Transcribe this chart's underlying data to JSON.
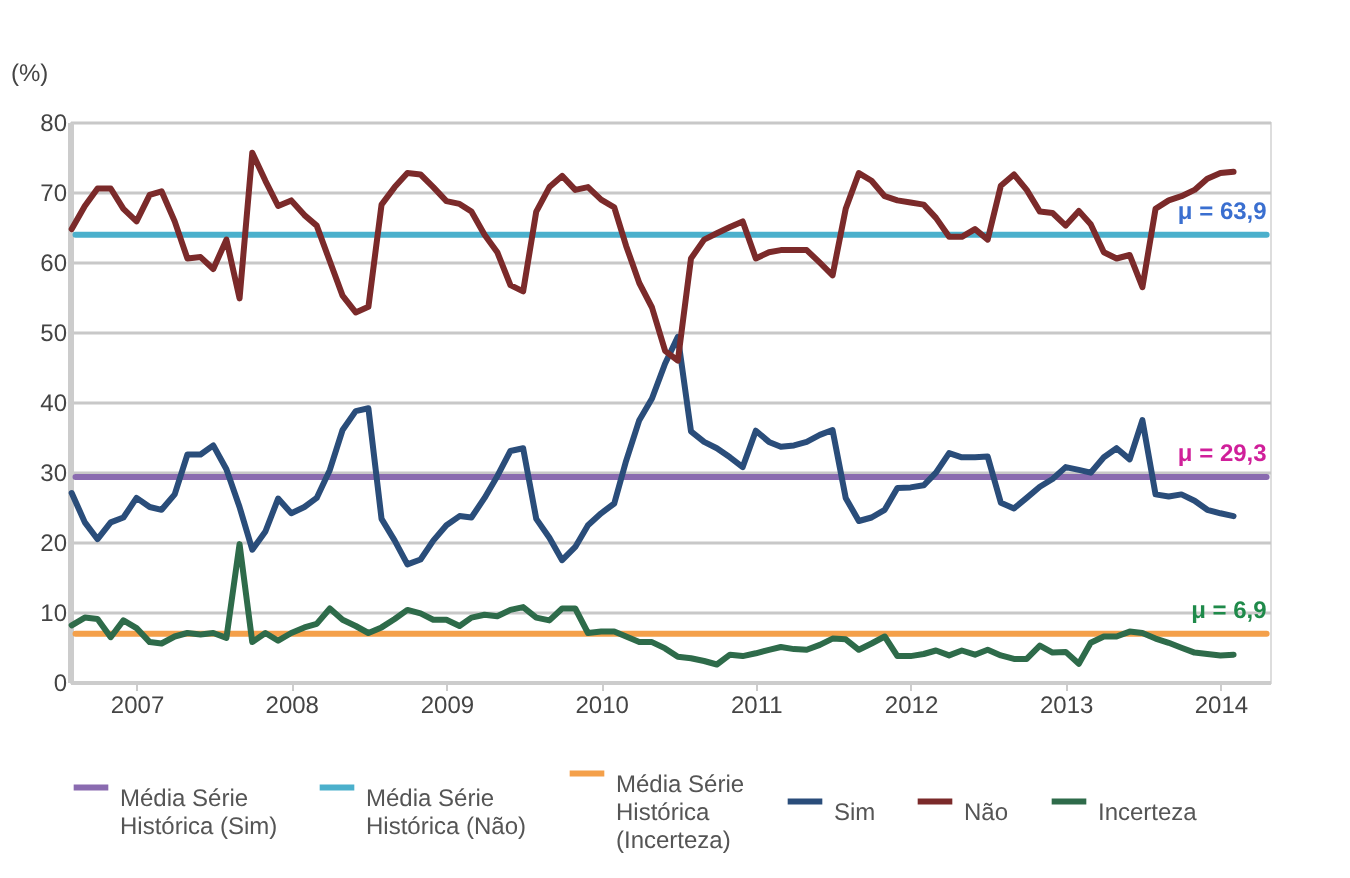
{
  "chart_data": {
    "type": "line",
    "ylabel": "(%)",
    "ylim": [
      0,
      80
    ],
    "yticks": [
      0,
      10,
      20,
      30,
      40,
      50,
      60,
      70,
      80
    ],
    "grid": "y",
    "legend": "bottom",
    "xlim": [
      "2006-07-28",
      "2014-04-28"
    ],
    "xticks": [
      "2007",
      "2008",
      "2009",
      "2010",
      "2011",
      "2012",
      "2013",
      "2014"
    ],
    "x": [
      "2006-08",
      "2006-09",
      "2006-10",
      "2006-11",
      "2006-12",
      "2007-01",
      "2007-02",
      "2007-03",
      "2007-04",
      "2007-05",
      "2007-06",
      "2007-07",
      "2007-08",
      "2007-09",
      "2007-10",
      "2007-11",
      "2007-12",
      "2008-01",
      "2008-02",
      "2008-03",
      "2008-04",
      "2008-05",
      "2008-06",
      "2008-07",
      "2008-08",
      "2008-09",
      "2008-10",
      "2008-11",
      "2008-12",
      "2009-01",
      "2009-02",
      "2009-03",
      "2009-04",
      "2009-05",
      "2009-06",
      "2009-07",
      "2009-08",
      "2009-09",
      "2009-10",
      "2009-11",
      "2009-12",
      "2010-01",
      "2010-02",
      "2010-03",
      "2010-04",
      "2010-05",
      "2010-06",
      "2010-07",
      "2010-08",
      "2010-09",
      "2010-10",
      "2010-11",
      "2010-12",
      "2011-01",
      "2011-02",
      "2011-03",
      "2011-04",
      "2011-05",
      "2011-06",
      "2011-07",
      "2011-08",
      "2011-09",
      "2011-10",
      "2011-11",
      "2011-12",
      "2012-01",
      "2012-02",
      "2012-03",
      "2012-04",
      "2012-05",
      "2012-06",
      "2012-07",
      "2012-08",
      "2012-09",
      "2012-10",
      "2012-11",
      "2012-12",
      "2013-01",
      "2013-02",
      "2013-03",
      "2013-04",
      "2013-05",
      "2013-06",
      "2013-07",
      "2013-08",
      "2013-09",
      "2013-10",
      "2013-11",
      "2013-12",
      "2014-01",
      "2014-02"
    ],
    "series": [
      {
        "name": "Média Série Histórica (Sim)",
        "color": "#8a6bb0",
        "x": [
          "2006-08-10",
          "2014-04-20"
        ],
        "values": [
          29.3,
          29.3
        ]
      },
      {
        "name": "Média Série Histórica (Não)",
        "color": "#4bb0cc",
        "x": [
          "2006-08-10",
          "2014-04-20"
        ],
        "values": [
          63.9,
          63.9
        ]
      },
      {
        "name": "Média Série Histórica (Incerteza)",
        "color": "#f4a04a",
        "x": [
          "2006-08-10",
          "2014-04-20"
        ],
        "values": [
          6.9,
          6.9
        ]
      },
      {
        "name": "Sim",
        "color": "#2a4d7a",
        "values": [
          27.0,
          22.8,
          20.4,
          22.8,
          23.5,
          26.3,
          25.0,
          24.6,
          26.8,
          32.5,
          32.5,
          33.8,
          30.4,
          25.0,
          18.9,
          21.5,
          26.2,
          24.1,
          25.0,
          26.3,
          30.3,
          36.0,
          38.7,
          39.1,
          23.3,
          20.2,
          16.8,
          17.5,
          20.2,
          22.4,
          23.7,
          23.5,
          26.3,
          29.4,
          33.0,
          33.4,
          23.3,
          20.6,
          17.4,
          19.3,
          22.4,
          24.1,
          25.5,
          31.6,
          37.4,
          40.5,
          45.5,
          49.3,
          35.8,
          34.3,
          33.4,
          32.1,
          30.7,
          35.9,
          34.3,
          33.6,
          33.8,
          34.3,
          35.3,
          36.0,
          26.3,
          23.0,
          23.5,
          24.6,
          27.7,
          27.8,
          28.1,
          29.9,
          32.7,
          32.1,
          32.1,
          32.2,
          25.6,
          24.8,
          26.3,
          27.9,
          29.0,
          30.7,
          30.3,
          29.9,
          32.1,
          33.4,
          31.8,
          37.4,
          26.8,
          26.5,
          26.8,
          25.9,
          24.6,
          24.1,
          23.7
        ]
      },
      {
        "name": "Não",
        "color": "#7b2a2a",
        "values": [
          64.7,
          68,
          70.5,
          70.5,
          67.6,
          65.8,
          69.6,
          70.1,
          65.8,
          60.5,
          60.7,
          59,
          63.2,
          54.8,
          75.6,
          71.6,
          68,
          68.8,
          66.7,
          65.2,
          60.1,
          55.2,
          52.8,
          53.6,
          68.2,
          70.7,
          72.7,
          72.5,
          70.7,
          68.7,
          68.3,
          67.2,
          63.9,
          61.4,
          56.7,
          55.8,
          67.2,
          70.7,
          72.3,
          70.3,
          70.7,
          68.9,
          67.8,
          62.3,
          57,
          53.5,
          47.3,
          45.9,
          60.5,
          63.2,
          64.1,
          65,
          65.8,
          60.5,
          61.4,
          61.7,
          61.7,
          61.7,
          59.9,
          58.1,
          67.6,
          72.7,
          71.6,
          69.4,
          68.8,
          68.5,
          68.2,
          66.3,
          63.6,
          63.6,
          64.7,
          63.2,
          70.9,
          72.5,
          70.3,
          67.2,
          67,
          65.2,
          67.3,
          65.4,
          61.4,
          60.5,
          61,
          56.4,
          67.6,
          68.8,
          69.4,
          70.3,
          71.9,
          72.7,
          72.9
        ]
      },
      {
        "name": "Incerteza",
        "color": "#2e6b4a",
        "values": [
          8.1,
          9.2,
          9.0,
          6.4,
          8.8,
          7.7,
          5.7,
          5.5,
          6.5,
          7.0,
          6.8,
          7.0,
          6.3,
          19.7,
          5.7,
          7.0,
          5.9,
          7.0,
          7.8,
          8.3,
          10.5,
          8.9,
          8.0,
          7.0,
          7.8,
          9.0,
          10.3,
          9.8,
          8.9,
          8.9,
          8.0,
          9.2,
          9.6,
          9.4,
          10.3,
          10.7,
          9.2,
          8.8,
          10.5,
          10.5,
          7.0,
          7.2,
          7.2,
          6.5,
          5.7,
          5.7,
          4.8,
          3.6,
          3.4,
          3.0,
          2.5,
          3.9,
          3.7,
          4.1,
          4.6,
          5.0,
          4.7,
          4.6,
          5.3,
          6.2,
          6.1,
          4.6,
          5.5,
          6.5,
          3.7,
          3.7,
          4.0,
          4.5,
          3.8,
          4.5,
          3.9,
          4.6,
          3.8,
          3.3,
          3.3,
          5.2,
          4.2,
          4.3,
          2.6,
          5.6,
          6.5,
          6.5,
          7.2,
          7.0,
          6.2,
          5.6,
          4.9,
          4.2,
          4.0,
          3.8,
          3.9
        ]
      }
    ],
    "annotations": [
      {
        "text": "μ = 63,9",
        "x": "2014-04-20",
        "y": 63.9
      },
      {
        "text": "μ = 29,3",
        "x": "2014-04-20",
        "y": 29.3
      },
      {
        "text": "μ = 6,9",
        "x": "2014-04-20",
        "y": 6.9
      }
    ]
  }
}
